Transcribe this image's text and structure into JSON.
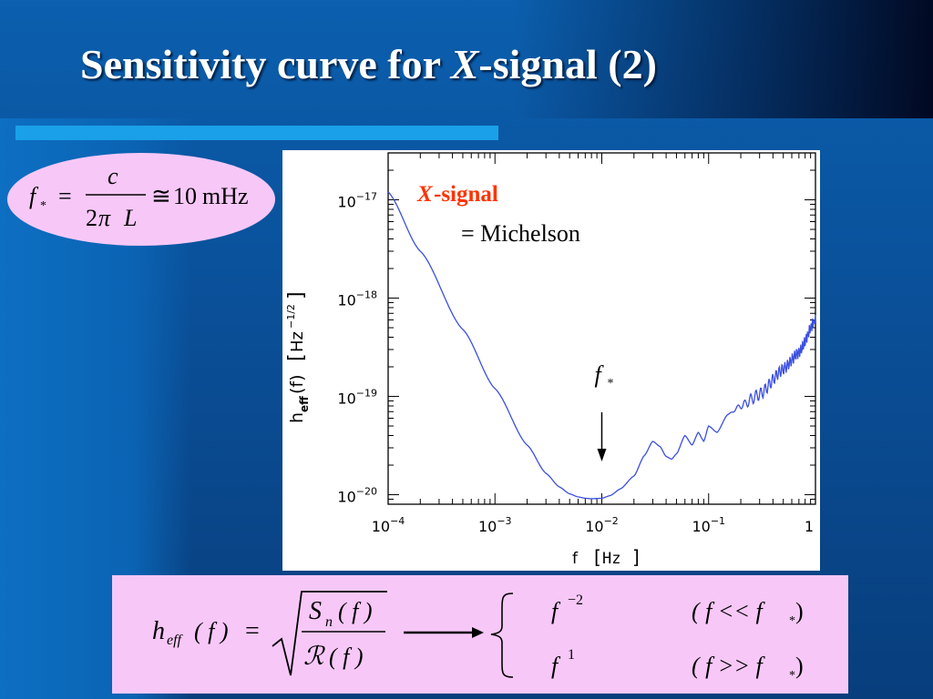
{
  "slide": {
    "title_prefix": "Sensitivity curve for ",
    "title_var": "X",
    "title_suffix": "-signal (2)",
    "colors": {
      "background": "#0a4f98",
      "rule": "#1aa0e8",
      "badge": "#f7c8f7",
      "curve": "#3a4fe0",
      "annotation": "#ff3300"
    }
  },
  "fstar_formula": {
    "lhs": "f",
    "lhs_sub": "*",
    "equals": "=",
    "numerator": "c",
    "denominator_pre": "2",
    "denominator_pi": "π",
    "denominator_L": "L",
    "approx": "≅",
    "value": "10",
    "unit": "mHz"
  },
  "chart_data": {
    "type": "line",
    "xscale": "log",
    "yscale": "log",
    "xlim": [
      0.0001,
      1
    ],
    "ylim": [
      8e-21,
      3e-17
    ],
    "xlabel": "f",
    "xlabel_unit": "Hz",
    "ylabel": "h",
    "ylabel_sub": "eff",
    "ylabel_arg": "(f)",
    "ylabel_unit": "Hz",
    "ylabel_unit_exp": "−1/2",
    "x_ticks": [
      {
        "base": "10",
        "exp": "−4",
        "value": 0.0001
      },
      {
        "base": "10",
        "exp": "−3",
        "value": 0.001
      },
      {
        "base": "10",
        "exp": "−2",
        "value": 0.01
      },
      {
        "base": "10",
        "exp": "−1",
        "value": 0.1
      },
      {
        "base": "1",
        "exp": "",
        "value": 1
      }
    ],
    "y_ticks": [
      {
        "base": "10",
        "exp": "−17",
        "value": 1e-17
      },
      {
        "base": "10",
        "exp": "−18",
        "value": 1e-18
      },
      {
        "base": "10",
        "exp": "−19",
        "value": 1e-19
      },
      {
        "base": "10",
        "exp": "−20",
        "value": 1e-20
      }
    ],
    "series": [
      {
        "x": [
          0.0001,
          0.0002,
          0.0005,
          0.001,
          0.002,
          0.003,
          0.004,
          0.005,
          0.006,
          0.007,
          0.008,
          0.01,
          0.012,
          0.015,
          0.02,
          0.025,
          0.03,
          0.035,
          0.04,
          0.045,
          0.05,
          0.06,
          0.07,
          0.08,
          0.09,
          0.1,
          0.12,
          0.15,
          0.2,
          0.3,
          0.5,
          0.7,
          1.0
        ],
        "y": [
          1.2e-17,
          3e-18,
          4.8e-19,
          1.2e-19,
          3.2e-20,
          1.65e-20,
          1.2e-20,
          1.02e-20,
          9.5e-21,
          9.2e-21,
          9.1e-21,
          9.2e-21,
          9.8e-21,
          1.15e-20,
          1.55e-20,
          2.5e-20,
          3.5e-20,
          3.1e-20,
          2.45e-20,
          2.3e-20,
          2.6e-20,
          4e-20,
          3.2e-20,
          4.3e-20,
          3.5e-20,
          5e-20,
          4.3e-20,
          6.5e-20,
          8e-20,
          1.05e-19,
          1.9e-19,
          2.8e-19,
          6e-19
        ]
      }
    ],
    "annotation_var": "X",
    "annotation_label": "-signal",
    "annotation_eq": "= Michelson",
    "marker_label": "f",
    "marker_sub": "*",
    "marker_x": 0.01
  },
  "heff_formula": {
    "lhs_h": "h",
    "lhs_sub": "eff",
    "lhs_arg": "( f )",
    "equals": "=",
    "num_S": "S",
    "num_sub": "n",
    "num_arg": "( f )",
    "den_R": "ℛ",
    "den_arg": "( f )",
    "case1_base": "f",
    "case1_exp": "−2",
    "case1_cond": "( f << f",
    "case1_cond_sub": "*",
    "case1_close": " )",
    "case2_base": "f",
    "case2_exp": "1",
    "case2_cond": "( f >> f",
    "case2_cond_sub": "*",
    "case2_close": " )"
  }
}
